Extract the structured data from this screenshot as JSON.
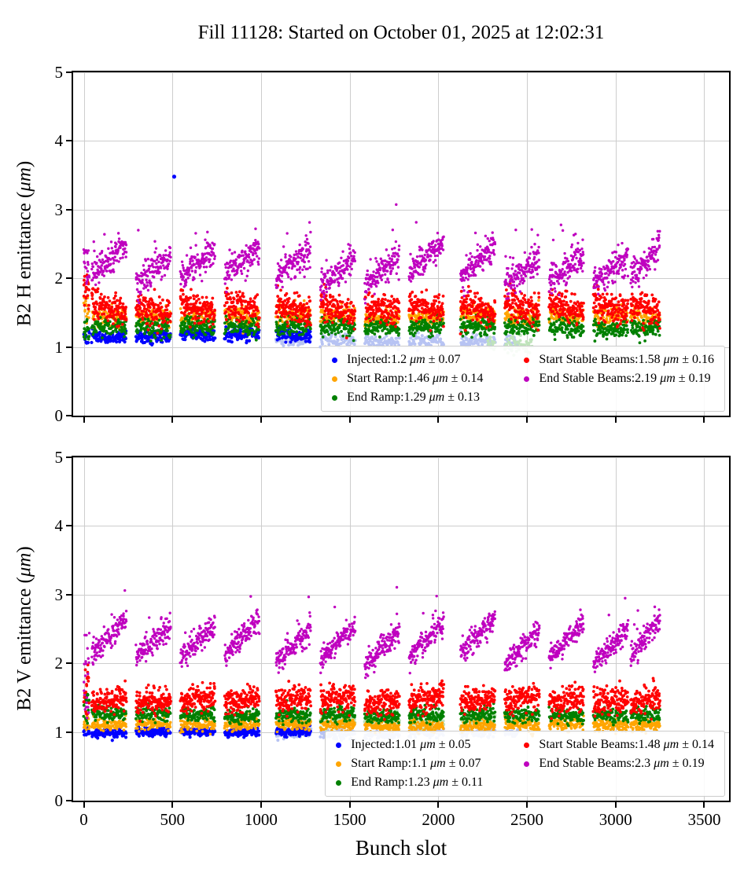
{
  "title": "Fill 11128: Started on October 01, 2025 at 12:02:31",
  "xlabel": "Bunch slot",
  "chart_data": [
    {
      "type": "scatter",
      "ylabel_pre": "B2 H emittance (",
      "ylabel_unit": "μm",
      "ylabel_post": ")",
      "xlim": [
        -60,
        3640
      ],
      "ylim": [
        0,
        5
      ],
      "xticks": [
        0,
        500,
        1000,
        1500,
        2000,
        2500,
        3000,
        3500
      ],
      "yticks": [
        0,
        1,
        2,
        3,
        4,
        5
      ],
      "grid": true,
      "legend_loc": "lower right",
      "trains": [
        [
          0,
          30
        ],
        [
          45,
          240
        ],
        [
          295,
          490
        ],
        [
          545,
          740
        ],
        [
          795,
          990
        ],
        [
          1085,
          1280
        ],
        [
          1335,
          1530
        ],
        [
          1585,
          1780
        ],
        [
          1835,
          2030
        ],
        [
          2125,
          2320
        ],
        [
          2375,
          2570
        ],
        [
          2625,
          2820
        ],
        [
          2875,
          3070
        ],
        [
          3085,
          3250
        ]
      ],
      "series": [
        {
          "name": "Injected",
          "color": "#0000ff",
          "legend_pre": "Injected:1.2 ",
          "legend_unit": "μm",
          "legend_post": " ± 0.07",
          "stats": {
            "mean": 1.2,
            "std": 0.07
          },
          "gen": {
            "mean": 1.17,
            "sigma": 0.045,
            "seed": 101,
            "r": 2.1,
            "step": 2,
            "xmax": 1300,
            "w0": [
              1.05,
              1.3
            ]
          },
          "outliers": [
            [
              510,
              3.48
            ]
          ]
        },
        {
          "name": "Start Ramp",
          "color": "#ffa500",
          "legend_pre": "Start Ramp:1.46 ",
          "legend_unit": "μm",
          "legend_post": " ± 0.14",
          "stats": {
            "mean": 1.46,
            "std": 0.14
          },
          "gen": {
            "mean": 1.44,
            "sigma": 0.07,
            "seed": 102,
            "r": 1.8,
            "step": 2,
            "w0": [
              1.3,
              1.75
            ]
          }
        },
        {
          "name": "End Ramp",
          "color": "#008000",
          "legend_pre": "End Ramp:1.29 ",
          "legend_unit": "μm",
          "legend_post": " ± 0.13",
          "stats": {
            "mean": 1.29,
            "std": 0.13
          },
          "gen": {
            "mean": 1.29,
            "sigma": 0.065,
            "seed": 103,
            "r": 1.9,
            "step": 2,
            "w0": [
              1.1,
              1.45
            ]
          }
        },
        {
          "name": "Start Stable Beams",
          "color": "#ff0000",
          "legend_pre": "Start Stable Beams:1.58 ",
          "legend_unit": "μm",
          "legend_post": " ± 0.16",
          "stats": {
            "mean": 1.58,
            "std": 0.16
          },
          "gen": {
            "mean": 1.56,
            "sigma": 0.11,
            "ramp": -0.12,
            "seed": 104,
            "r": 1.9,
            "step": 1.5,
            "tjit": 0.07,
            "w0": [
              1.5,
              2.05
            ]
          }
        },
        {
          "name": "End Stable Beams",
          "color": "#bf00bf",
          "legend_pre": "End Stable Beams:2.19 ",
          "legend_unit": "μm",
          "legend_post": " ± 0.19",
          "stats": {
            "mean": 2.19,
            "std": 0.19
          },
          "gen": {
            "mean": 2.2,
            "sigma": 0.11,
            "ramp": 0.42,
            "seed": 105,
            "r": 1.7,
            "step": 1.5,
            "tjit": 0.22,
            "highP": 0.015,
            "w0": [
              1.9,
              2.45
            ]
          }
        }
      ],
      "ghosts": [
        {
          "color": "#b7c3f3",
          "xrange": [
            1085,
            2450
          ],
          "gen": {
            "mean": 1.1,
            "sigma": 0.05,
            "seed": 301,
            "r": 2,
            "step": 3
          }
        },
        {
          "color": "#bfe3bb",
          "xrange": [
            2280,
            2530
          ],
          "gen": {
            "mean": 1.03,
            "sigma": 0.05,
            "seed": 302,
            "r": 2,
            "step": 3
          }
        }
      ]
    },
    {
      "type": "scatter",
      "ylabel_pre": "B2 V emittance (",
      "ylabel_unit": "μm",
      "ylabel_post": ")",
      "xlim": [
        -60,
        3640
      ],
      "ylim": [
        0,
        5
      ],
      "xticks": [
        0,
        500,
        1000,
        1500,
        2000,
        2500,
        3000,
        3500
      ],
      "yticks": [
        0,
        1,
        2,
        3,
        4,
        5
      ],
      "grid": true,
      "legend_loc": "lower right",
      "trains": [
        [
          0,
          30
        ],
        [
          45,
          240
        ],
        [
          295,
          490
        ],
        [
          545,
          740
        ],
        [
          795,
          990
        ],
        [
          1085,
          1280
        ],
        [
          1335,
          1530
        ],
        [
          1585,
          1780
        ],
        [
          1835,
          2030
        ],
        [
          2125,
          2320
        ],
        [
          2375,
          2570
        ],
        [
          2625,
          2820
        ],
        [
          2875,
          3070
        ],
        [
          3085,
          3250
        ]
      ],
      "series": [
        {
          "name": "Injected",
          "color": "#0000ff",
          "legend_pre": "Injected:1.01 ",
          "legend_unit": "μm",
          "legend_post": " ± 0.05",
          "stats": {
            "mean": 1.01,
            "std": 0.05
          },
          "gen": {
            "mean": 1.0,
            "sigma": 0.03,
            "seed": 201,
            "r": 2.1,
            "step": 2,
            "xmax": 1300,
            "w0": [
              0.95,
              1.1
            ]
          }
        },
        {
          "name": "Start Ramp",
          "color": "#ffa500",
          "legend_pre": "Start Ramp:1.1 ",
          "legend_unit": "μm",
          "legend_post": " ± 0.07",
          "stats": {
            "mean": 1.1,
            "std": 0.07
          },
          "gen": {
            "mean": 1.1,
            "sigma": 0.045,
            "seed": 202,
            "r": 1.8,
            "step": 2,
            "w0": [
              1.0,
              1.3
            ]
          }
        },
        {
          "name": "End Ramp",
          "color": "#008000",
          "legend_pre": "End Ramp:1.23 ",
          "legend_unit": "μm",
          "legend_post": " ± 0.11",
          "stats": {
            "mean": 1.23,
            "std": 0.11
          },
          "gen": {
            "mean": 1.24,
            "sigma": 0.055,
            "seed": 203,
            "r": 1.9,
            "step": 2,
            "w0": [
              1.05,
              1.55
            ]
          }
        },
        {
          "name": "Start Stable Beams",
          "color": "#ff0000",
          "legend_pre": "Start Stable Beams:1.48 ",
          "legend_unit": "μm",
          "legend_post": " ± 0.14",
          "stats": {
            "mean": 1.48,
            "std": 0.14
          },
          "gen": {
            "mean": 1.46,
            "sigma": 0.095,
            "ramp": 0.08,
            "seed": 204,
            "r": 1.9,
            "step": 1.5,
            "tjit": 0.06,
            "w0": [
              1.2,
              2.0
            ]
          }
        },
        {
          "name": "End Stable Beams",
          "color": "#bf00bf",
          "legend_pre": "End Stable Beams:2.3 ",
          "legend_unit": "μm",
          "legend_post": " ± 0.19",
          "stats": {
            "mean": 2.3,
            "std": 0.19
          },
          "gen": {
            "mean": 2.32,
            "sigma": 0.09,
            "ramp": 0.5,
            "seed": 205,
            "r": 1.7,
            "step": 1.5,
            "tjit": 0.18,
            "highP": 0.008,
            "w0": [
              1.0,
              2.45
            ]
          }
        }
      ],
      "ghosts": [
        {
          "color": "#b7c3f3",
          "xrange": [
            1085,
            2450
          ],
          "gen": {
            "mean": 0.97,
            "sigma": 0.035,
            "seed": 303,
            "r": 2,
            "step": 3
          }
        },
        {
          "color": "#bfe3bb",
          "xrange": [
            1085,
            2450
          ],
          "gen": {
            "mean": 1.17,
            "sigma": 0.05,
            "seed": 304,
            "r": 2,
            "step": 3
          }
        }
      ]
    }
  ]
}
